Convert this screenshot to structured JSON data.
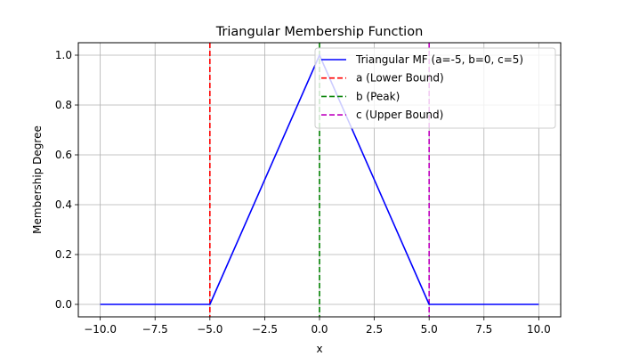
{
  "chart_data": {
    "type": "line",
    "title": "Triangular Membership Function",
    "xlabel": "x",
    "ylabel": "Membership Degree",
    "xlim": [
      -11,
      11
    ],
    "ylim": [
      -0.05,
      1.05
    ],
    "xticks": [
      -10.0,
      -7.5,
      -5.0,
      -2.5,
      0.0,
      2.5,
      5.0,
      7.5,
      10.0
    ],
    "xtick_labels": [
      "−10.0",
      "−7.5",
      "−5.0",
      "−2.5",
      "0.0",
      "2.5",
      "5.0",
      "7.5",
      "10.0"
    ],
    "yticks": [
      0.0,
      0.2,
      0.4,
      0.6,
      0.8,
      1.0
    ],
    "ytick_labels": [
      "0.0",
      "0.2",
      "0.4",
      "0.6",
      "0.8",
      "1.0"
    ],
    "grid": true,
    "legend_position": "top-right",
    "series": [
      {
        "name": "Triangular MF (a=-5, b=0, c=5)",
        "color": "#0000ff",
        "style": "solid",
        "x": [
          -10,
          -5,
          0,
          5,
          10
        ],
        "y": [
          0,
          0,
          1,
          0,
          0
        ]
      }
    ],
    "vlines": [
      {
        "name": "a (Lower Bound)",
        "x": -5,
        "color": "#ff0000",
        "style": "dashed"
      },
      {
        "name": "b (Peak)",
        "x": 0,
        "color": "#008000",
        "style": "dashed"
      },
      {
        "name": "c (Upper Bound)",
        "x": 5,
        "color": "#bf00bf",
        "style": "dashed"
      }
    ]
  }
}
